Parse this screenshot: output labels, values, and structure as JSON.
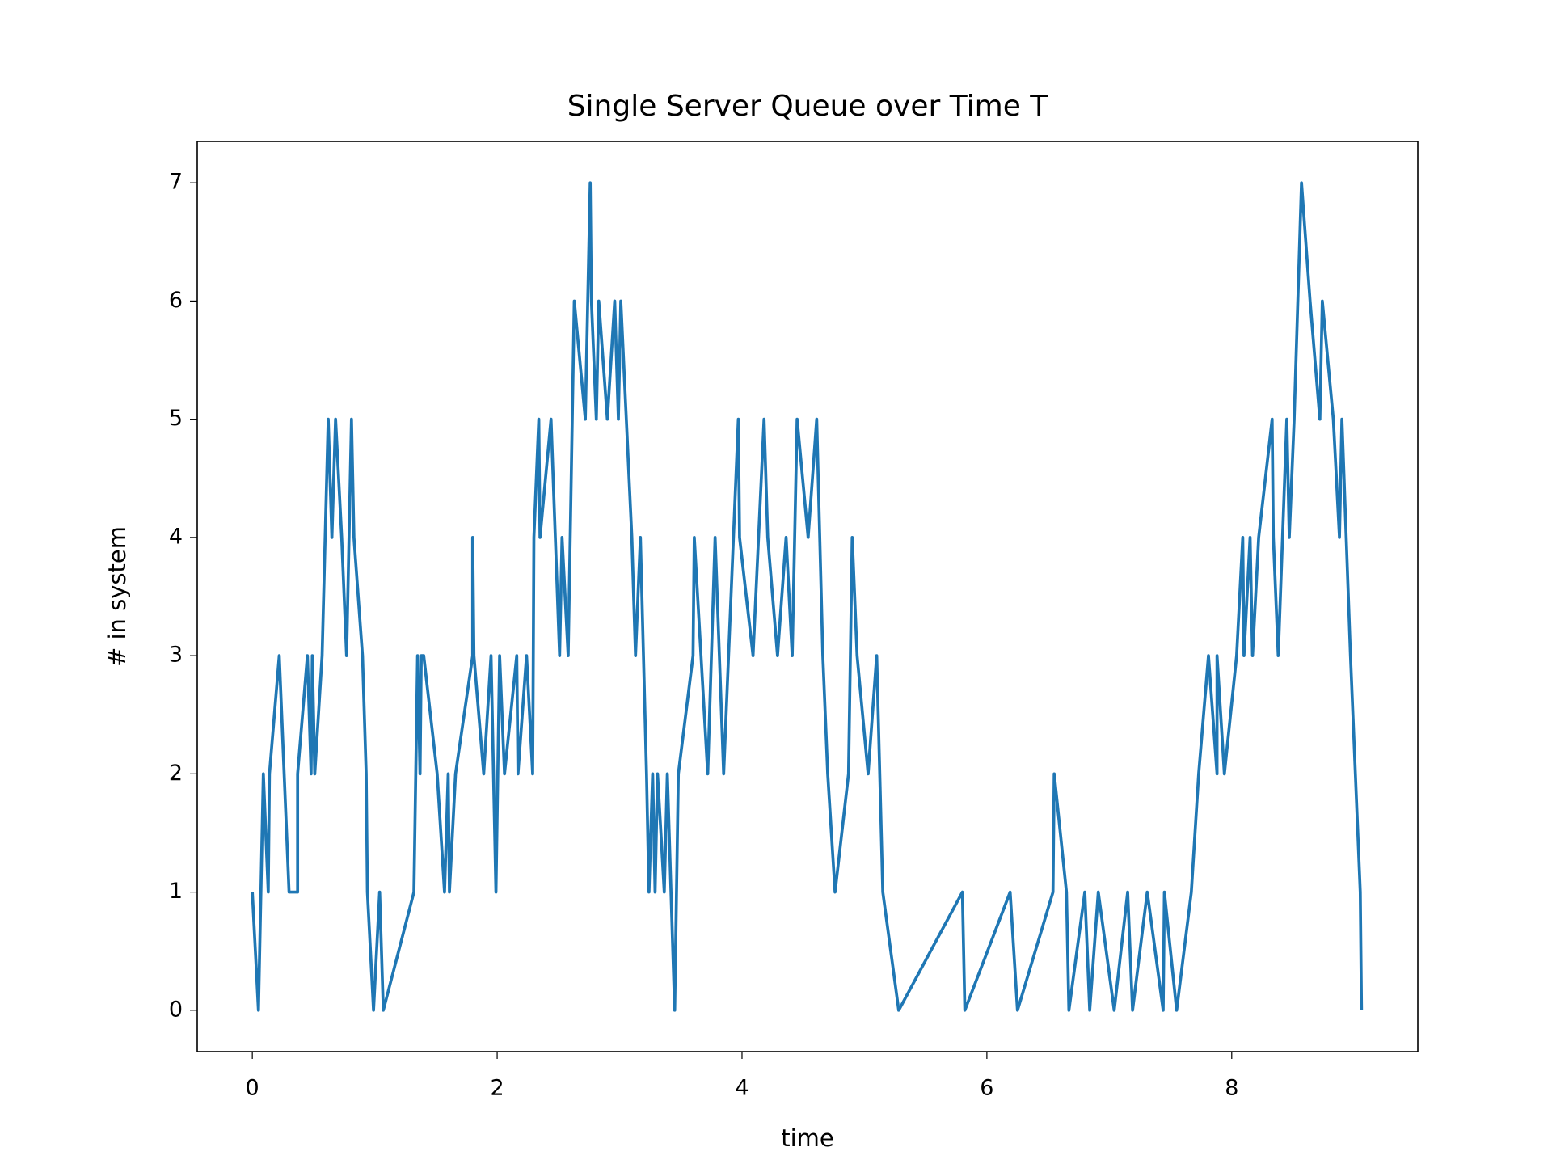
{
  "chart_data": {
    "type": "line",
    "title": "Single Server Queue over Time T",
    "xlabel": "time",
    "ylabel": "# in system",
    "color": "#1f77b4",
    "x": [
      0,
      0.05,
      0.09,
      0.13,
      0.14,
      0.22,
      0.3,
      0.37,
      0.37,
      0.45,
      0.48,
      0.49,
      0.51,
      0.57,
      0.62,
      0.65,
      0.68,
      0.73,
      0.77,
      0.81,
      0.83,
      0.9,
      0.93,
      0.94,
      0.99,
      1.04,
      1.07,
      1.32,
      1.35,
      1.37,
      1.38,
      1.4,
      1.51,
      1.57,
      1.6,
      1.61,
      1.66,
      1.8,
      1.8,
      1.81,
      1.89,
      1.95,
      1.99,
      2.02,
      2.06,
      2.16,
      2.17,
      2.24,
      2.29,
      2.3,
      2.34,
      2.35,
      2.44,
      2.51,
      2.53,
      2.58,
      2.63,
      2.72,
      2.76,
      2.77,
      2.81,
      2.83,
      2.9,
      2.96,
      2.99,
      3.01,
      3.1,
      3.13,
      3.17,
      3.22,
      3.24,
      3.27,
      3.29,
      3.31,
      3.365,
      3.39,
      3.45,
      3.48,
      3.6,
      3.61,
      3.72,
      3.78,
      3.85,
      3.97,
      3.98,
      4.09,
      4.18,
      4.21,
      4.29,
      4.36,
      4.41,
      4.45,
      4.54,
      4.61,
      4.66,
      4.7,
      4.76,
      4.87,
      4.9,
      4.94,
      5.03,
      5.1,
      5.15,
      5.28,
      5.8,
      5.82,
      6.19,
      6.25,
      6.54,
      6.55,
      6.65,
      6.67,
      6.8,
      6.84,
      6.91,
      7.04,
      7.15,
      7.19,
      7.31,
      7.44,
      7.45,
      7.55,
      7.67,
      7.73,
      7.81,
      7.88,
      7.88,
      7.94,
      8.04,
      8.09,
      8.1,
      8.15,
      8.17,
      8.22,
      8.33,
      8.34,
      8.38,
      8.45,
      8.47,
      8.51,
      8.57,
      8.64,
      8.72,
      8.74,
      8.83,
      8.88,
      8.9,
      8.97,
      9.01,
      9.05,
      9.06
    ],
    "values": [
      1,
      0,
      2,
      1,
      2,
      3,
      1,
      1,
      2,
      3,
      2,
      3,
      2,
      3,
      5,
      4,
      5,
      4,
      3,
      5,
      4,
      3,
      2,
      1,
      0,
      1,
      0,
      1,
      3,
      2,
      3,
      3,
      2,
      1,
      2,
      1,
      2,
      3,
      4,
      3,
      2,
      3,
      1,
      3,
      2,
      3,
      2,
      3,
      2,
      4,
      5,
      4,
      5,
      3,
      4,
      3,
      6,
      5,
      7,
      6,
      5,
      6,
      5,
      6,
      5,
      6,
      4,
      3,
      4,
      2,
      1,
      2,
      1,
      2,
      1,
      2,
      0,
      2,
      3,
      4,
      2,
      4,
      2,
      5,
      4,
      3,
      5,
      4,
      3,
      4,
      3,
      5,
      4,
      5,
      3,
      2,
      1,
      2,
      4,
      3,
      2,
      3,
      1,
      0,
      1,
      0,
      1,
      0,
      1,
      2,
      1,
      0,
      1,
      0,
      1,
      0,
      1,
      0,
      1,
      0,
      1,
      0,
      1,
      2,
      3,
      2,
      3,
      2,
      3,
      4,
      3,
      4,
      3,
      4,
      5,
      4,
      3,
      5,
      4,
      5,
      7,
      6,
      5,
      6,
      5,
      4,
      5,
      3,
      2,
      1,
      0
    ],
    "xlim": [
      -0.45,
      9.52
    ],
    "ylim": [
      -0.35,
      7.35
    ],
    "xticks": [
      0,
      2,
      4,
      6,
      8
    ],
    "yticks": [
      0,
      1,
      2,
      3,
      4,
      5,
      6,
      7
    ]
  }
}
